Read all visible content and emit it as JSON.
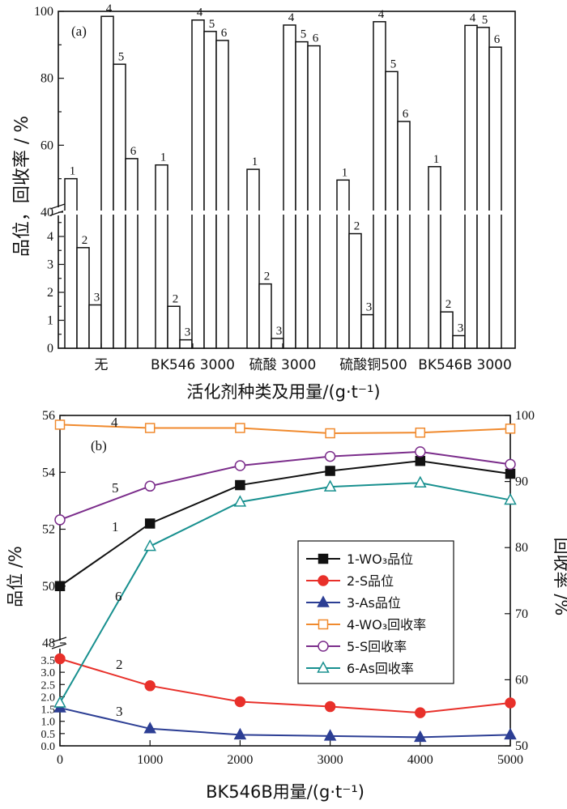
{
  "chart_data": [
    {
      "panel": "(a)",
      "type": "bar",
      "ylabel": "品位，回收率 / %",
      "xlabel": "活化剂种类及用量/(g·t⁻¹)",
      "categories": [
        "无",
        "BK546 3000",
        "硫酸 3000",
        "硫酸铜500",
        "BK546B 3000"
      ],
      "bar_labels": [
        "1",
        "2",
        "3",
        "4",
        "5",
        "6"
      ],
      "series": [
        {
          "name": "1",
          "values": [
            50.0,
            54.1,
            52.8,
            49.6,
            53.6
          ]
        },
        {
          "name": "2",
          "values": [
            3.6,
            1.5,
            2.3,
            4.1,
            1.3
          ]
        },
        {
          "name": "3",
          "values": [
            1.55,
            0.3,
            0.35,
            1.2,
            0.45
          ]
        },
        {
          "name": "4",
          "values": [
            98.5,
            97.4,
            95.9,
            96.9,
            95.8
          ]
        },
        {
          "name": "5",
          "values": [
            84.2,
            94.0,
            90.9,
            82.0,
            95.2
          ]
        },
        {
          "name": "6",
          "values": [
            56.0,
            91.3,
            89.7,
            67.1,
            89.3
          ]
        }
      ],
      "y_upper": {
        "range": [
          40,
          100
        ],
        "ticks": [
          "40",
          "60",
          "80",
          "100"
        ]
      },
      "y_lower": {
        "range": [
          0,
          5
        ],
        "ticks": [
          "0",
          "1",
          "2",
          "3",
          "4"
        ]
      }
    },
    {
      "panel": "(b)",
      "type": "line",
      "xlabel": "BK546B用量/(g·t⁻¹)",
      "ylabel_left": "品位 /%",
      "ylabel_right": "回收率 /%",
      "x": [
        0,
        1000,
        2000,
        3000,
        4000,
        5000
      ],
      "x_ticks": [
        "0",
        "1000",
        "2000",
        "3000",
        "4000",
        "5000"
      ],
      "y_left_upper": {
        "range": [
          48,
          56
        ],
        "ticks": [
          "48",
          "50",
          "52",
          "54",
          "56"
        ]
      },
      "y_left_lower": {
        "range": [
          0,
          4
        ],
        "ticks": [
          "0.0",
          "0.5",
          "1.0",
          "1.5",
          "2.0",
          "2.5",
          "3.0",
          "3.5"
        ]
      },
      "y_right": {
        "range": [
          50,
          100
        ],
        "ticks": [
          "50",
          "60",
          "70",
          "80",
          "90",
          "100"
        ]
      },
      "series": [
        {
          "id": "1",
          "legend": "1-WO₃品位",
          "axis": "left-upper",
          "color": "#111111",
          "marker": "square-filled",
          "values": [
            50.0,
            52.2,
            53.55,
            54.05,
            54.4,
            53.95
          ]
        },
        {
          "id": "2",
          "legend": "2-S品位",
          "axis": "left-lower",
          "color": "#e8302a",
          "marker": "circle-filled",
          "values": [
            3.55,
            2.45,
            1.8,
            1.6,
            1.35,
            1.75
          ]
        },
        {
          "id": "3",
          "legend": "3-As品位",
          "axis": "left-lower",
          "color": "#2c3e94",
          "marker": "triangle-filled",
          "values": [
            1.55,
            0.7,
            0.45,
            0.4,
            0.35,
            0.45
          ]
        },
        {
          "id": "4",
          "legend": "4-WO₃回收率",
          "axis": "right",
          "color": "#f08a2e",
          "marker": "square-open",
          "values": [
            98.6,
            98.1,
            98.1,
            97.3,
            97.4,
            98.0
          ]
        },
        {
          "id": "5",
          "legend": "5-S回收率",
          "axis": "right",
          "color": "#7b2d8b",
          "marker": "circle-open",
          "values": [
            84.2,
            89.3,
            92.4,
            93.8,
            94.5,
            92.6
          ]
        },
        {
          "id": "6",
          "legend": "6-As回收率",
          "axis": "right",
          "color": "#18908f",
          "marker": "triangle-open",
          "values": [
            56.5,
            80.2,
            86.9,
            89.2,
            89.8,
            87.2
          ]
        }
      ]
    }
  ]
}
